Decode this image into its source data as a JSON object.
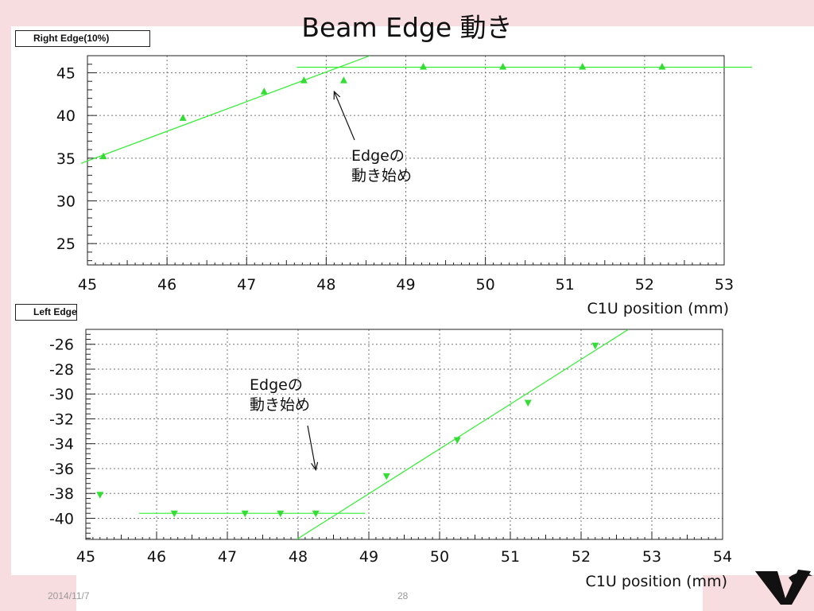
{
  "title": "Beam Edge 動き",
  "footer": {
    "date": "2014/11/7",
    "page": "28"
  },
  "colors": {
    "series": "#33dd33",
    "fit": "#33ee33",
    "background": "#f8dde0"
  },
  "chart_data": [
    {
      "type": "scatter",
      "label": "Right Edge(10%)",
      "xlabel": "C1U position (mm)",
      "xlim": [
        45,
        53
      ],
      "ylim": [
        22.5,
        47
      ],
      "x_ticks": [
        45,
        46,
        47,
        48,
        49,
        50,
        51,
        52,
        53
      ],
      "y_ticks": [
        25,
        30,
        35,
        40,
        45
      ],
      "marker": "triangle-up",
      "grid": true,
      "series": [
        {
          "x": [
            45.2,
            46.2,
            47.22,
            47.72,
            48.22,
            49.22,
            50.22,
            51.22,
            52.22
          ],
          "values": [
            35.2,
            39.7,
            42.8,
            44.1,
            44.1,
            45.7,
            45.7,
            45.7,
            45.7
          ]
        }
      ],
      "fit_lines": [
        {
          "x": [
            44.92,
            48.55
          ],
          "y": [
            34.4,
            47.0
          ]
        },
        {
          "x": [
            47.63,
            53.35
          ],
          "y": [
            45.65,
            45.65
          ]
        }
      ],
      "annotation": {
        "lines": [
          "Edgeの",
          "動き始め"
        ],
        "arrow_to": [
          48.1,
          42.8
        ]
      }
    },
    {
      "type": "scatter",
      "label": "Left Edge",
      "xlabel": "C1U position (mm)",
      "xlim": [
        45,
        54
      ],
      "ylim": [
        -41.7,
        -24.8
      ],
      "x_ticks": [
        45,
        46,
        47,
        48,
        49,
        50,
        51,
        52,
        53,
        54
      ],
      "y_ticks": [
        -26,
        -28,
        -30,
        -32,
        -34,
        -36,
        -38,
        -40
      ],
      "marker": "triangle-down",
      "grid": true,
      "series": [
        {
          "x": [
            45.2,
            46.25,
            47.25,
            47.75,
            48.25,
            49.25,
            50.25,
            51.25,
            52.2
          ],
          "values": [
            -38.1,
            -39.6,
            -39.6,
            -39.6,
            -39.6,
            -36.6,
            -33.7,
            -30.7,
            -26.1
          ]
        }
      ],
      "fit_lines": [
        {
          "x": [
            45.75,
            48.95
          ],
          "y": [
            -39.6,
            -39.6
          ]
        },
        {
          "x": [
            47.98,
            52.67
          ],
          "y": [
            -41.7,
            -24.8
          ]
        }
      ],
      "annotation": {
        "lines": [
          "Edgeの",
          "動き始め"
        ],
        "arrow_to": [
          48.25,
          -36.1
        ]
      }
    }
  ]
}
